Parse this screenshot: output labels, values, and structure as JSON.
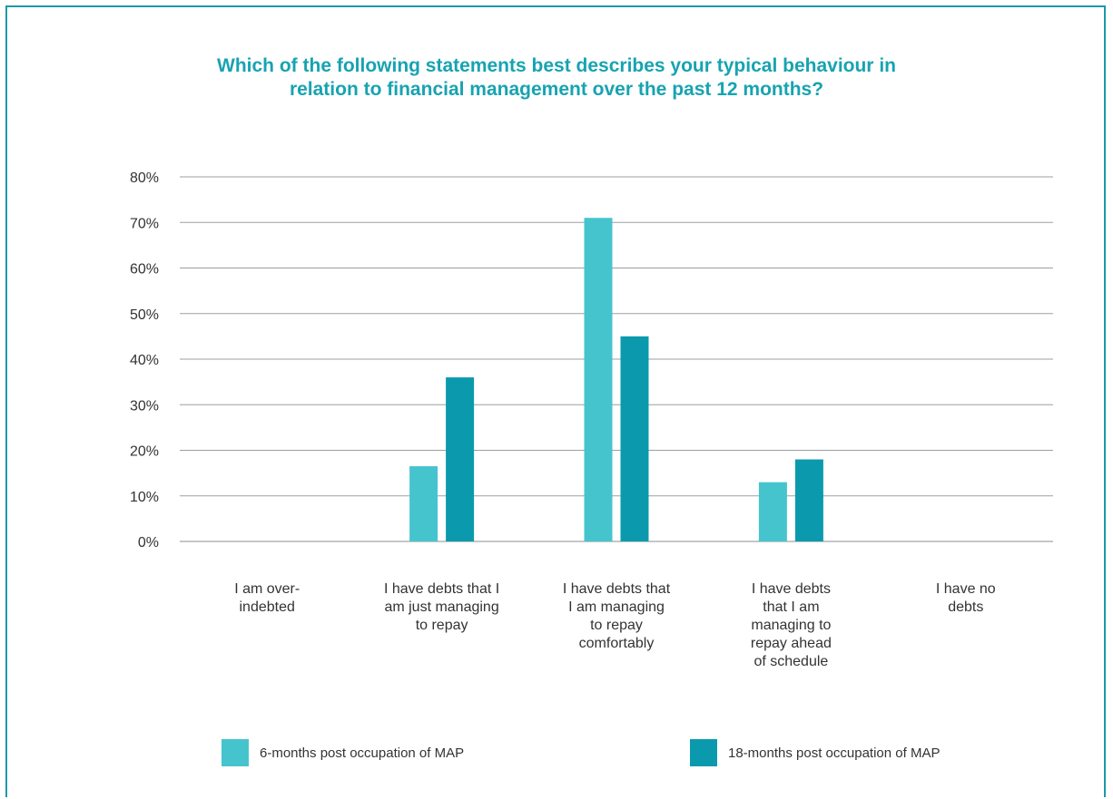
{
  "chart_data": {
    "type": "bar",
    "title_lines": [
      "Which of the following statements best describes your typical behaviour in",
      "relation to financial management over the past 12 months?"
    ],
    "categories": [
      [
        "I am over-",
        "indebted"
      ],
      [
        "I have debts that I",
        "am just managing",
        "to repay"
      ],
      [
        "I have debts that",
        "I am managing",
        "to repay",
        "comfortably"
      ],
      [
        "I have debts",
        "that I am",
        "managing to",
        "repay ahead",
        "of schedule"
      ],
      [
        "I have no",
        "debts"
      ]
    ],
    "series": [
      {
        "name": "6-months post occupation of MAP",
        "color": "#46c4ce",
        "values": [
          0,
          16.5,
          71,
          13,
          0
        ]
      },
      {
        "name": "18-months post occupation of MAP",
        "color": "#0b9aad",
        "values": [
          0,
          36,
          45,
          18,
          0
        ]
      }
    ],
    "yticks": [
      "0%",
      "10%",
      "20%",
      "30%",
      "40%",
      "50%",
      "60%",
      "70%",
      "80%"
    ],
    "ylim": [
      0,
      80
    ],
    "grid": true,
    "legend_position": "bottom"
  }
}
